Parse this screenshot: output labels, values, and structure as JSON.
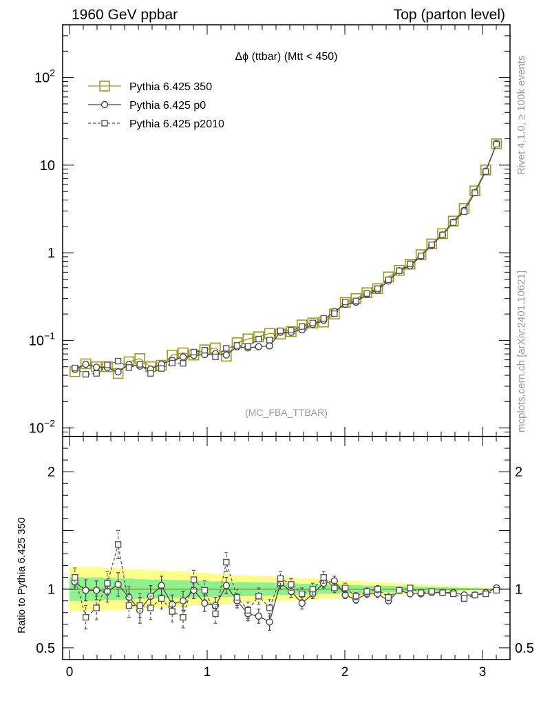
{
  "header": {
    "left": "1960 GeV ppbar",
    "right": "Top (parton level)"
  },
  "side": {
    "rivet": "Rivet 4.1.0, ≥ 100k events",
    "mcplots": "mcplots.cern.ch [arXiv:2401.10621]"
  },
  "chart_data": {
    "type": "line",
    "title": "Δϕ (ttbar) (Mtt < 450)",
    "analysis_label": "(MC_FBA_TTBAR)",
    "xlim": [
      -0.05,
      3.2
    ],
    "ylim_log": [
      0.008,
      400
    ],
    "ratio_ylim": [
      0.4,
      2.3
    ],
    "ratio_ylabel": "Ratio to Pythia 6.425 350",
    "x_ticks": [
      {
        "v": 0,
        "label": "0"
      },
      {
        "v": 1,
        "label": "1"
      },
      {
        "v": 2,
        "label": "2"
      },
      {
        "v": 3,
        "label": "3"
      }
    ],
    "y_ticks": [
      {
        "v": 0.01,
        "base": "10",
        "exp": "−2",
        "plain": ""
      },
      {
        "v": 0.1,
        "base": "10",
        "exp": "−1",
        "plain": ""
      },
      {
        "v": 1,
        "base": "",
        "exp": "",
        "plain": "1"
      },
      {
        "v": 10,
        "base": "",
        "exp": "",
        "plain": "10"
      },
      {
        "v": 100,
        "base": "10",
        "exp": "2",
        "plain": ""
      }
    ],
    "ratio_ticks": [
      {
        "v": 0.5,
        "label": "0.5"
      },
      {
        "v": 1,
        "label": "1"
      },
      {
        "v": 2,
        "label": "2"
      }
    ],
    "x": [
      0.039,
      0.118,
      0.196,
      0.275,
      0.353,
      0.432,
      0.511,
      0.589,
      0.668,
      0.746,
      0.825,
      0.903,
      0.982,
      1.06,
      1.139,
      1.217,
      1.296,
      1.374,
      1.453,
      1.532,
      1.61,
      1.689,
      1.767,
      1.846,
      1.924,
      2.003,
      2.081,
      2.16,
      2.238,
      2.317,
      2.395,
      2.474,
      2.553,
      2.631,
      2.71,
      2.788,
      2.867,
      2.945,
      3.024,
      3.102
    ],
    "series": [
      {
        "name": "Pythia 6.425 350",
        "color": "#9a9a1e",
        "marker": "square-large",
        "dashed": false,
        "values": [
          0.044,
          0.054,
          0.05,
          0.05,
          0.042,
          0.057,
          0.062,
          0.05,
          0.052,
          0.068,
          0.072,
          0.068,
          0.078,
          0.082,
          0.066,
          0.094,
          0.104,
          0.11,
          0.12,
          0.118,
          0.126,
          0.15,
          0.158,
          0.162,
          0.2,
          0.272,
          0.3,
          0.35,
          0.39,
          0.53,
          0.63,
          0.74,
          0.95,
          1.26,
          1.65,
          2.3,
          3.2,
          5.1,
          8.8,
          17.5
        ]
      },
      {
        "name": "Pythia 6.425 p0",
        "color": "#444444",
        "marker": "circle",
        "dashed": false,
        "ratio": [
          1.06,
          0.99,
          0.99,
          0.98,
          1.04,
          0.93,
          0.82,
          0.94,
          1.03,
          0.87,
          0.9,
          0.99,
          0.88,
          0.86,
          1.03,
          0.9,
          0.79,
          0.77,
          0.72,
          1.05,
          0.98,
          0.88,
          0.96,
          1.05,
          1.07,
          0.95,
          0.91,
          0.96,
          0.96,
          0.9,
          0.99,
          0.96,
          0.96,
          0.97,
          0.97,
          0.97,
          0.95,
          0.95,
          0.97,
          1.01
        ],
        "ratio_err": [
          0.06,
          0.09,
          0.08,
          0.09,
          0.1,
          0.09,
          0.11,
          0.09,
          0.08,
          0.08,
          0.08,
          0.07,
          0.07,
          0.07,
          0.07,
          0.06,
          0.06,
          0.06,
          0.07,
          0.05,
          0.05,
          0.05,
          0.04,
          0.04,
          0.04,
          0.03,
          0.03,
          0.03,
          0.03,
          0.02,
          0.02,
          0.02,
          0.02,
          0.015,
          0.015,
          0.01,
          0.01,
          0.01,
          0.01,
          0.01
        ]
      },
      {
        "name": "Pythia 6.425 p2010",
        "color": "#555555",
        "marker": "square-small",
        "dashed": true,
        "ratio": [
          1.1,
          0.76,
          0.84,
          1.05,
          1.38,
          0.86,
          0.86,
          0.84,
          0.92,
          0.81,
          0.76,
          1.08,
          0.99,
          0.79,
          1.23,
          0.93,
          0.82,
          0.94,
          0.84,
          1.09,
          1.04,
          0.96,
          1.0,
          1.1,
          1.01,
          1.01,
          0.94,
          0.98,
          1.0,
          0.93,
          0.99,
          1.01,
          0.97,
          0.98,
          0.97,
          0.96,
          0.92,
          0.95,
          0.96,
          0.99
        ],
        "ratio_err": [
          0.08,
          0.1,
          0.1,
          0.1,
          0.12,
          0.1,
          0.1,
          0.1,
          0.09,
          0.09,
          0.09,
          0.08,
          0.08,
          0.08,
          0.08,
          0.07,
          0.07,
          0.07,
          0.07,
          0.06,
          0.05,
          0.05,
          0.05,
          0.05,
          0.04,
          0.04,
          0.03,
          0.03,
          0.03,
          0.03,
          0.02,
          0.02,
          0.02,
          0.02,
          0.015,
          0.015,
          0.01,
          0.01,
          0.01,
          0.01
        ]
      }
    ],
    "ref_band": {
      "yellow_halfwidth": [
        0.19,
        0.19,
        0.19,
        0.18,
        0.18,
        0.17,
        0.17,
        0.16,
        0.16,
        0.15,
        0.15,
        0.14,
        0.14,
        0.13,
        0.13,
        0.12,
        0.12,
        0.11,
        0.11,
        0.1,
        0.1,
        0.09,
        0.09,
        0.08,
        0.08,
        0.07,
        0.07,
        0.06,
        0.06,
        0.055,
        0.05,
        0.045,
        0.04,
        0.035,
        0.03,
        0.025,
        0.02,
        0.015,
        0.012,
        0.01
      ],
      "green_halfwidth": [
        0.1,
        0.1,
        0.1,
        0.095,
        0.09,
        0.09,
        0.085,
        0.08,
        0.08,
        0.075,
        0.075,
        0.07,
        0.07,
        0.065,
        0.065,
        0.06,
        0.06,
        0.055,
        0.055,
        0.05,
        0.05,
        0.045,
        0.045,
        0.04,
        0.04,
        0.035,
        0.035,
        0.03,
        0.03,
        0.028,
        0.025,
        0.022,
        0.02,
        0.018,
        0.015,
        0.012,
        0.01,
        0.008,
        0.006,
        0.005
      ],
      "yellow_color": "#fdfd8a",
      "green_color": "#8ef08e"
    }
  }
}
